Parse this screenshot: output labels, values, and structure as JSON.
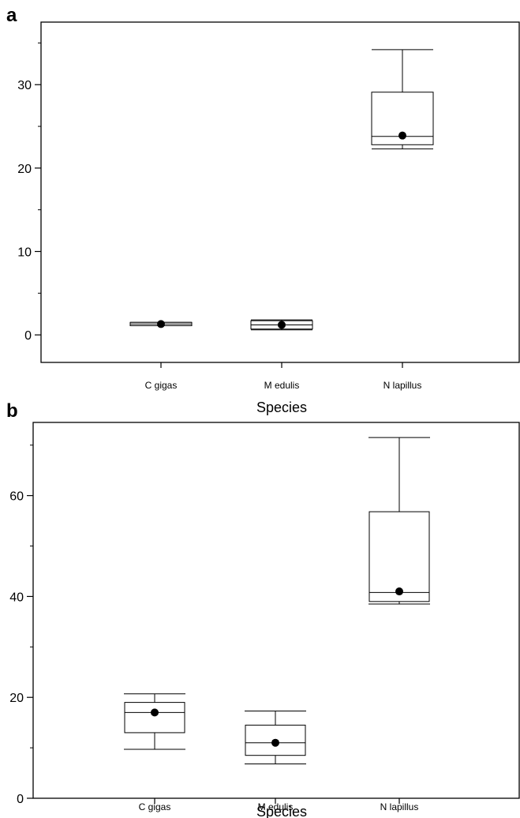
{
  "chart_data": [
    {
      "panel": "a",
      "type": "box",
      "xlabel": "Species",
      "ylabel": "",
      "ylim": [
        -3.3,
        37.5
      ],
      "yticks": [
        0,
        10,
        20,
        30
      ],
      "grid": false,
      "categories": [
        "C  gigas",
        "M  edulis",
        "N  lapillus"
      ],
      "boxes": [
        {
          "category": "C  gigas",
          "whisker_low": 1.1,
          "q1": 1.1,
          "median": 1.3,
          "q3": 1.5,
          "whisker_high": 1.5,
          "mean": 1.3
        },
        {
          "category": "M  edulis",
          "whisker_low": 0.6,
          "q1": 0.7,
          "median": 1.2,
          "q3": 1.7,
          "whisker_high": 1.8,
          "mean": 1.2
        },
        {
          "category": "N  lapillus",
          "whisker_low": 22.3,
          "q1": 22.8,
          "median": 23.8,
          "q3": 29.1,
          "whisker_high": 34.2,
          "mean": 23.9
        }
      ]
    },
    {
      "panel": "b",
      "type": "box",
      "xlabel": "Species",
      "ylabel": "",
      "ylim": [
        0,
        74.5
      ],
      "yticks": [
        0,
        20,
        40,
        60
      ],
      "grid": false,
      "categories": [
        "C  gigas",
        "M  edulis",
        "N  lapillus"
      ],
      "boxes": [
        {
          "category": "C  gigas",
          "whisker_low": 9.7,
          "q1": 13.0,
          "median": 17.0,
          "q3": 19.0,
          "whisker_high": 20.7,
          "mean": 17.0
        },
        {
          "category": "M  edulis",
          "whisker_low": 6.8,
          "q1": 8.5,
          "median": 11.0,
          "q3": 14.5,
          "whisker_high": 17.3,
          "mean": 11.0
        },
        {
          "category": "N  lapillus",
          "whisker_low": 38.5,
          "q1": 39.0,
          "median": 40.8,
          "q3": 56.8,
          "whisker_high": 71.5,
          "mean": 41.0
        }
      ]
    }
  ]
}
